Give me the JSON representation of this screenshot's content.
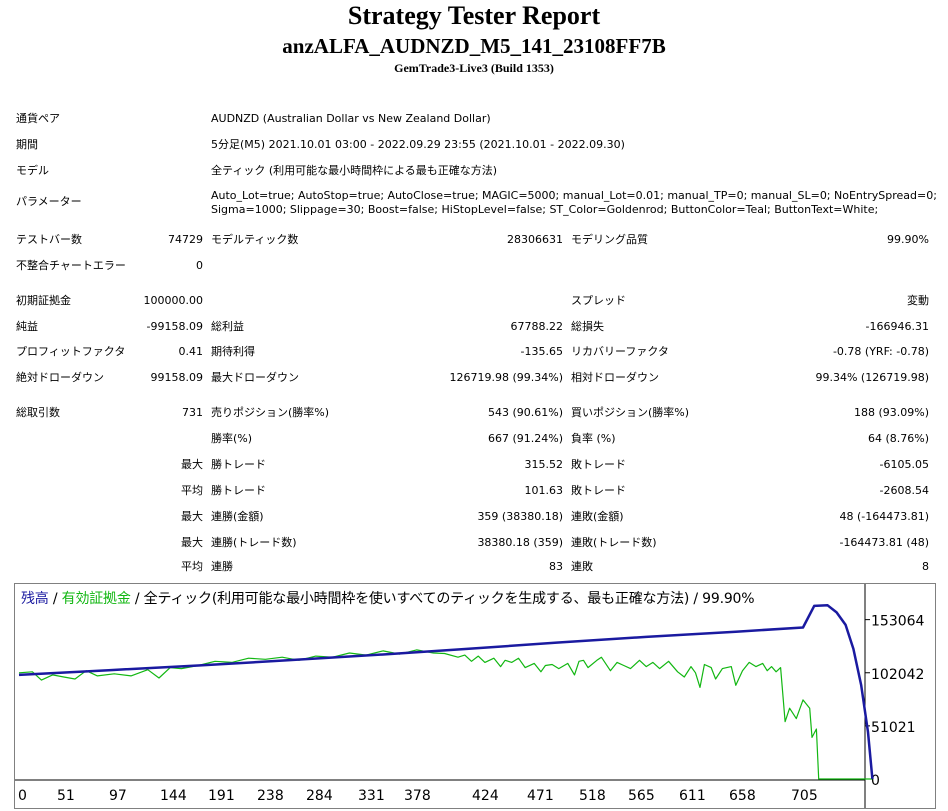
{
  "header": {
    "title": "Strategy Tester Report",
    "subtitle": "anzALFA_AUDNZD_M5_141_23108FF7B",
    "server": "GemTrade3-Live3 (Build 1353)"
  },
  "info": {
    "pair_label": "通貨ペア",
    "pair_value": "AUDNZD (Australian Dollar vs New Zealand Dollar)",
    "period_label": "期間",
    "period_value": "5分足(M5) 2021.10.01 03:00 - 2022.09.29 23:55 (2021.10.01 - 2022.09.30)",
    "model_label": "モデル",
    "model_value": "全ティック (利用可能な最小時間枠による最も正確な方法)",
    "params_label": "パラメーター",
    "params_line1": "Auto_Lot=true; AutoStop=true; AutoClose=true; MAGIC=5000; manual_Lot=0.01; manual_TP=0; manual_SL=0; NoEntrySpread=0;",
    "params_line2": "Sigma=1000; Slippage=30; Boost=false; HiStopLevel=false; ST_Color=Goldenrod; ButtonColor=Teal; ButtonText=White;"
  },
  "stats": {
    "bars_label": "テストバー数",
    "bars_value": "74729",
    "ticks_label": "モデルティック数",
    "ticks_value": "28306631",
    "quality_label": "モデリング品質",
    "quality_value": "99.90%",
    "mismatch_label": "不整合チャートエラー",
    "mismatch_value": "0",
    "deposit_label": "初期証拠金",
    "deposit_value": "100000.00",
    "spread_label": "スプレッド",
    "spread_value": "変動",
    "net_label": "純益",
    "net_value": "-99158.09",
    "gross_profit_label": "総利益",
    "gross_profit_value": "67788.22",
    "gross_loss_label": "総損失",
    "gross_loss_value": "-166946.31",
    "pf_label": "プロフィットファクタ",
    "pf_value": "0.41",
    "payoff_label": "期待利得",
    "payoff_value": "-135.65",
    "recovery_label": "リカバリーファクタ",
    "recovery_value": "-0.78 (YRF: -0.78)",
    "abs_dd_label": "絶対ドローダウン",
    "abs_dd_value": "99158.09",
    "max_dd_label": "最大ドローダウン",
    "max_dd_value": "126719.98 (99.34%)",
    "rel_dd_label": "相対ドローダウン",
    "rel_dd_value": "99.34% (126719.98)",
    "trades_label": "総取引数",
    "trades_value": "731",
    "short_label": "売りポジション(勝率%)",
    "short_value": "543 (90.61%)",
    "long_label": "買いポジション(勝率%)",
    "long_value": "188 (93.09%)",
    "win_rate_label": "勝率(%)",
    "win_rate_value": "667 (91.24%)",
    "loss_rate_label": "負率 (%)",
    "loss_rate_value": "64 (8.76%)",
    "max_label": "最大",
    "avg_label": "平均",
    "largest_win_label": "勝トレード",
    "largest_win_value": "315.52",
    "largest_loss_label": "敗トレード",
    "largest_loss_value": "-6105.05",
    "avg_win_label": "勝トレード",
    "avg_win_value": "101.63",
    "avg_loss_label": "敗トレード",
    "avg_loss_value": "-2608.54",
    "max_consec_win_money_label": "連勝(金額)",
    "max_consec_win_money_value": "359 (38380.18)",
    "max_consec_loss_money_label": "連敗(金額)",
    "max_consec_loss_money_value": "48 (-164473.81)",
    "max_consec_win_count_label": "連勝(トレード数)",
    "max_consec_win_count_value": "38380.18 (359)",
    "max_consec_loss_count_label": "連敗(トレード数)",
    "max_consec_loss_count_value": "-164473.81 (48)",
    "avg_consec_win_label": "連勝",
    "avg_consec_win_value": "83",
    "avg_consec_loss_label": "連敗",
    "avg_consec_loss_value": "8"
  },
  "chart_legend": {
    "balance": "残高",
    "sep1": " / ",
    "equity": "有効証拠金",
    "rest": " / 全ティック(利用可能な最小時間枠を使いすべてのティックを生成する、最も正確な方法) / 99.90%"
  },
  "colors": {
    "balance": "#1a1aa0",
    "equity": "#12b712"
  },
  "chart_data": {
    "type": "line",
    "x_ticks": [
      "0",
      "51",
      "97",
      "144",
      "191",
      "238",
      "284",
      "331",
      "378",
      "424",
      "471",
      "518",
      "565",
      "611",
      "658",
      "705"
    ],
    "y_ticks": [
      "153064",
      "102042",
      "51021",
      "0"
    ],
    "xlim": [
      0,
      750
    ],
    "ylim": [
      0,
      170000
    ],
    "series": [
      {
        "name": "残高",
        "color": "#1a1aa0",
        "points": [
          [
            0,
            100000
          ],
          [
            80,
            104500
          ],
          [
            160,
            109000
          ],
          [
            240,
            114000
          ],
          [
            330,
            120000
          ],
          [
            400,
            125000
          ],
          [
            480,
            131000
          ],
          [
            560,
            136500
          ],
          [
            640,
            141500
          ],
          [
            700,
            145500
          ],
          [
            710,
            166300
          ],
          [
            722,
            166800
          ],
          [
            730,
            160000
          ],
          [
            738,
            148000
          ],
          [
            745,
            125000
          ],
          [
            752,
            90000
          ],
          [
            758,
            45000
          ],
          [
            762,
            0
          ]
        ]
      },
      {
        "name": "有効証拠金",
        "color": "#12b712",
        "points": [
          [
            0,
            102000
          ],
          [
            12,
            103000
          ],
          [
            20,
            95000
          ],
          [
            30,
            100000
          ],
          [
            40,
            98000
          ],
          [
            50,
            96000
          ],
          [
            60,
            104000
          ],
          [
            70,
            99000
          ],
          [
            85,
            101000
          ],
          [
            100,
            99000
          ],
          [
            115,
            105000
          ],
          [
            125,
            97000
          ],
          [
            135,
            107000
          ],
          [
            145,
            106000
          ],
          [
            160,
            109000
          ],
          [
            175,
            113000
          ],
          [
            190,
            112000
          ],
          [
            205,
            116000
          ],
          [
            220,
            115000
          ],
          [
            235,
            117000
          ],
          [
            250,
            114000
          ],
          [
            265,
            118000
          ],
          [
            280,
            117000
          ],
          [
            295,
            121000
          ],
          [
            310,
            119000
          ],
          [
            325,
            123000
          ],
          [
            340,
            120000
          ],
          [
            355,
            124000
          ],
          [
            370,
            121000
          ],
          [
            380,
            120500
          ],
          [
            392,
            117000
          ],
          [
            398,
            119000
          ],
          [
            404,
            113000
          ],
          [
            410,
            118000
          ],
          [
            416,
            112000
          ],
          [
            424,
            116000
          ],
          [
            430,
            108000
          ],
          [
            434,
            114000
          ],
          [
            440,
            112000
          ],
          [
            446,
            116000
          ],
          [
            452,
            107000
          ],
          [
            460,
            111000
          ],
          [
            466,
            103000
          ],
          [
            470,
            109000
          ],
          [
            476,
            110000
          ],
          [
            482,
            106000
          ],
          [
            490,
            111000
          ],
          [
            496,
            100000
          ],
          [
            500,
            113000
          ],
          [
            504,
            114000
          ],
          [
            508,
            107000
          ],
          [
            516,
            114000
          ],
          [
            520,
            117000
          ],
          [
            528,
            104000
          ],
          [
            534,
            112000
          ],
          [
            540,
            109000
          ],
          [
            546,
            106000
          ],
          [
            554,
            114000
          ],
          [
            560,
            108000
          ],
          [
            566,
            112000
          ],
          [
            572,
            106000
          ],
          [
            580,
            113000
          ],
          [
            588,
            103000
          ],
          [
            594,
            98000
          ],
          [
            600,
            108000
          ],
          [
            604,
            102000
          ],
          [
            608,
            88000
          ],
          [
            612,
            110000
          ],
          [
            618,
            107000
          ],
          [
            622,
            96000
          ],
          [
            628,
            106000
          ],
          [
            636,
            108000
          ],
          [
            640,
            90000
          ],
          [
            646,
            104000
          ],
          [
            652,
            112000
          ],
          [
            658,
            108000
          ],
          [
            664,
            111000
          ],
          [
            668,
            104000
          ],
          [
            672,
            108000
          ],
          [
            676,
            103000
          ],
          [
            680,
            107000
          ],
          [
            684,
            55000
          ],
          [
            688,
            68000
          ],
          [
            694,
            58000
          ],
          [
            700,
            76000
          ],
          [
            706,
            68000
          ],
          [
            708,
            40000
          ],
          [
            712,
            48000
          ],
          [
            714,
            0
          ],
          [
            762,
            0
          ]
        ]
      }
    ]
  }
}
